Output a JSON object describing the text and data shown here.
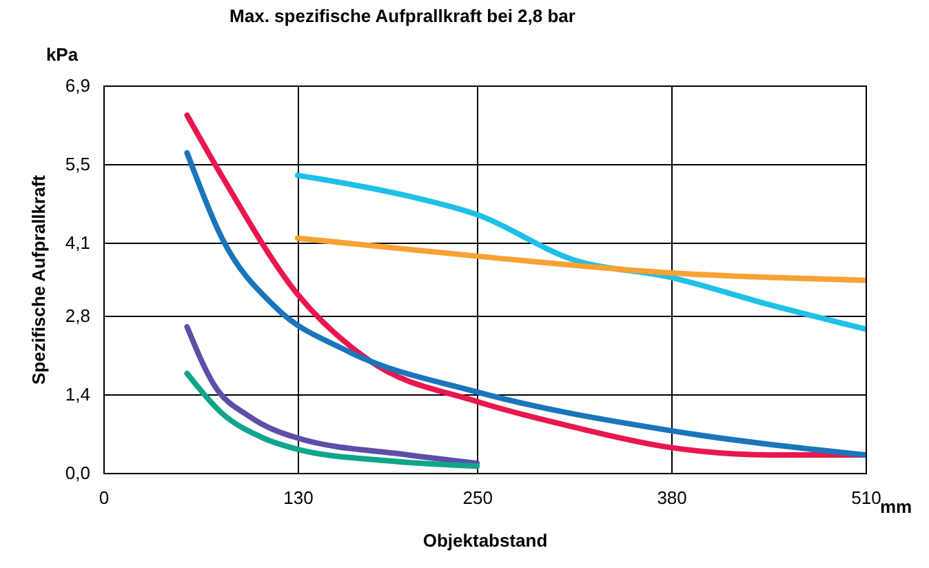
{
  "chart_data": {
    "type": "line",
    "title": "Max. spezifische Aufprallkraft bei 2,8 bar",
    "xlabel": "Objektabstand",
    "ylabel": "Spezifische Aufprallkraft",
    "annotations": [
      "kPa",
      "mm"
    ],
    "xlim": [
      0,
      510
    ],
    "xticks": [
      0,
      130,
      250,
      380,
      510
    ],
    "ylim": [
      0,
      6.9
    ],
    "yticks": [
      {
        "value": 0,
        "label": "0,0"
      },
      {
        "value": 1.4,
        "label": "1,4"
      },
      {
        "value": 2.8,
        "label": "2,8"
      },
      {
        "value": 4.1,
        "label": "4,1"
      },
      {
        "value": 5.5,
        "label": "5,5"
      },
      {
        "value": 6.9,
        "label": "6,9"
      }
    ],
    "grid": true,
    "series": [
      {
        "color": "#1ec0e6",
        "x": [
          130,
          204,
          250,
          314,
          380,
          445,
          510
        ],
        "values": [
          5.3,
          4.93,
          4.6,
          3.8,
          3.48,
          3.0,
          2.56
        ]
      },
      {
        "color": "#f7a234",
        "x": [
          130,
          250,
          380,
          510
        ],
        "values": [
          4.18,
          3.86,
          3.56,
          3.43
        ]
      },
      {
        "color": "#e8174e",
        "x": [
          56,
          79,
          130,
          178,
          250,
          314,
          380,
          445,
          510
        ],
        "values": [
          6.37,
          5.3,
          3.18,
          2.0,
          1.27,
          0.82,
          0.45,
          0.32,
          0.32
        ]
      },
      {
        "color": "#1a75bb",
        "x": [
          56,
          79,
          116,
          161,
          250,
          380,
          510
        ],
        "values": [
          5.7,
          4.2,
          2.93,
          2.2,
          1.44,
          0.75,
          0.32
        ]
      },
      {
        "color": "#5b4fa8",
        "x": [
          56,
          74,
          98,
          130,
          204,
          250
        ],
        "values": [
          2.6,
          1.57,
          1.0,
          0.62,
          0.32,
          0.17
        ]
      },
      {
        "color": "#10a58a",
        "x": [
          56,
          79,
          107,
          130,
          188,
          250
        ],
        "values": [
          1.77,
          1.07,
          0.62,
          0.42,
          0.22,
          0.12
        ]
      }
    ]
  }
}
